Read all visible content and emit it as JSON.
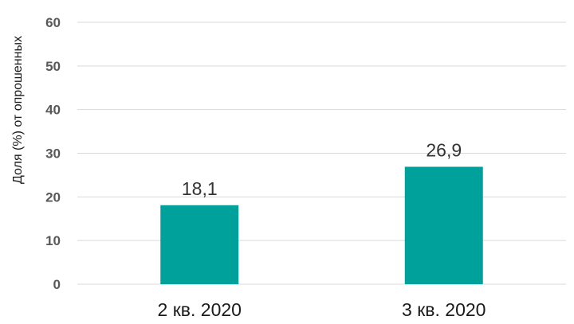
{
  "chart_data": {
    "type": "bar",
    "ylabel": "Доля (%) от опрошенных",
    "categories": [
      "2 кв. 2020",
      "3 кв. 2020"
    ],
    "values": [
      18.1,
      26.9
    ],
    "data_labels": [
      "18,1",
      "26,9"
    ],
    "ylim": [
      0,
      60
    ],
    "yticks": [
      "0",
      "10",
      "20",
      "30",
      "40",
      "50",
      "60"
    ],
    "grid": true,
    "legend": "none",
    "bar_color": "#00A19A",
    "grid_color": "#D9D9D9"
  }
}
